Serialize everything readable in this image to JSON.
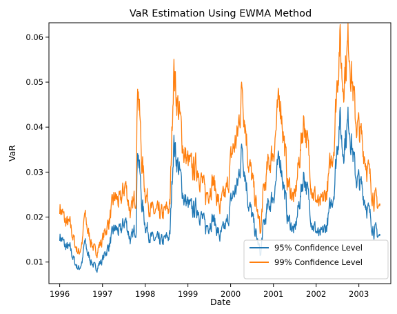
{
  "chart_data": {
    "type": "line",
    "title": "VaR Estimation Using EWMA Method",
    "xlabel": "Date",
    "ylabel": "VaR",
    "x_range": [
      "1995-10-01",
      "2003-10-01"
    ],
    "ylim": [
      0.0052,
      0.0632
    ],
    "x_ticks": [
      "1996",
      "1997",
      "1998",
      "1999",
      "2000",
      "2001",
      "2002",
      "2003"
    ],
    "y_ticks": [
      "0.01",
      "0.02",
      "0.03",
      "0.04",
      "0.05",
      "0.06"
    ],
    "grid": false,
    "legend_position": "lower-right",
    "series": [
      {
        "name": "95% Confidence Level",
        "color": "#1f77b4",
        "points": [
          [
            "1996-01-01",
            0.016
          ],
          [
            "1996-02-15",
            0.0135
          ],
          [
            "1996-04-01",
            0.0128
          ],
          [
            "1996-05-15",
            0.0095
          ],
          [
            "1996-06-15",
            0.0085
          ],
          [
            "1996-07-15",
            0.0105
          ],
          [
            "1996-08-01",
            0.0145
          ],
          [
            "1996-09-01",
            0.0115
          ],
          [
            "1996-11-01",
            0.0085
          ],
          [
            "1997-01-01",
            0.0105
          ],
          [
            "1997-03-01",
            0.014
          ],
          [
            "1997-04-15",
            0.0175
          ],
          [
            "1997-06-01",
            0.0165
          ],
          [
            "1997-07-15",
            0.0195
          ],
          [
            "1997-09-01",
            0.0145
          ],
          [
            "1997-10-15",
            0.018
          ],
          [
            "1997-10-28",
            0.037
          ],
          [
            "1997-12-01",
            0.0235
          ],
          [
            "1998-01-01",
            0.0185
          ],
          [
            "1998-03-01",
            0.015
          ],
          [
            "1998-06-01",
            0.0145
          ],
          [
            "1998-08-01",
            0.016
          ],
          [
            "1998-08-31",
            0.037
          ],
          [
            "1998-10-01",
            0.0325
          ],
          [
            "1998-12-01",
            0.024
          ],
          [
            "1999-02-01",
            0.0215
          ],
          [
            "1999-04-01",
            0.022
          ],
          [
            "1999-06-01",
            0.0175
          ],
          [
            "1999-08-01",
            0.02
          ],
          [
            "1999-10-01",
            0.0155
          ],
          [
            "1999-12-01",
            0.0185
          ],
          [
            "2000-01-15",
            0.0245
          ],
          [
            "2000-03-01",
            0.027
          ],
          [
            "2000-04-10",
            0.036
          ],
          [
            "2000-06-01",
            0.0235
          ],
          [
            "2000-08-01",
            0.0165
          ],
          [
            "2000-09-15",
            0.0115
          ],
          [
            "2000-10-01",
            0.017
          ],
          [
            "2000-11-15",
            0.022
          ],
          [
            "2001-01-01",
            0.025
          ],
          [
            "2001-03-01",
            0.0335
          ],
          [
            "2001-05-01",
            0.02
          ],
          [
            "2001-07-01",
            0.0165
          ],
          [
            "2001-09-20",
            0.03
          ],
          [
            "2001-12-01",
            0.0185
          ],
          [
            "2002-02-01",
            0.0155
          ],
          [
            "2002-04-01",
            0.018
          ],
          [
            "2002-06-01",
            0.026
          ],
          [
            "2002-07-20",
            0.0425
          ],
          [
            "2002-08-15",
            0.035
          ],
          [
            "2002-10-10",
            0.042
          ],
          [
            "2002-12-01",
            0.0295
          ],
          [
            "2003-02-01",
            0.026
          ],
          [
            "2003-04-01",
            0.0205
          ],
          [
            "2003-05-15",
            0.017
          ],
          [
            "2003-07-01",
            0.0155
          ]
        ]
      },
      {
        "name": "99% Confidence Level",
        "color": "#ff7f0e",
        "points": [
          [
            "1996-01-01",
            0.0225
          ],
          [
            "1996-02-15",
            0.019
          ],
          [
            "1996-04-01",
            0.018
          ],
          [
            "1996-05-15",
            0.0135
          ],
          [
            "1996-06-15",
            0.012
          ],
          [
            "1996-07-15",
            0.015
          ],
          [
            "1996-08-01",
            0.0205
          ],
          [
            "1996-09-01",
            0.0165
          ],
          [
            "1996-11-01",
            0.012
          ],
          [
            "1997-01-01",
            0.015
          ],
          [
            "1997-03-01",
            0.0195
          ],
          [
            "1997-04-15",
            0.0245
          ],
          [
            "1997-06-01",
            0.023
          ],
          [
            "1997-07-15",
            0.0275
          ],
          [
            "1997-09-01",
            0.0205
          ],
          [
            "1997-10-15",
            0.0255
          ],
          [
            "1997-10-28",
            0.0525
          ],
          [
            "1997-12-01",
            0.033
          ],
          [
            "1998-01-01",
            0.026
          ],
          [
            "1998-03-01",
            0.021
          ],
          [
            "1998-06-01",
            0.0205
          ],
          [
            "1998-08-01",
            0.0225
          ],
          [
            "1998-08-31",
            0.0535
          ],
          [
            "1998-10-01",
            0.046
          ],
          [
            "1998-12-01",
            0.034
          ],
          [
            "1999-02-01",
            0.0305
          ],
          [
            "1999-04-01",
            0.031
          ],
          [
            "1999-06-01",
            0.0245
          ],
          [
            "1999-08-01",
            0.0285
          ],
          [
            "1999-10-01",
            0.022
          ],
          [
            "1999-12-01",
            0.026
          ],
          [
            "2000-01-15",
            0.0345
          ],
          [
            "2000-03-01",
            0.038
          ],
          [
            "2000-04-10",
            0.0495
          ],
          [
            "2000-06-01",
            0.033
          ],
          [
            "2000-08-01",
            0.0235
          ],
          [
            "2000-09-15",
            0.0165
          ],
          [
            "2000-10-01",
            0.024
          ],
          [
            "2000-11-15",
            0.031
          ],
          [
            "2001-01-01",
            0.035
          ],
          [
            "2001-03-01",
            0.047
          ],
          [
            "2001-05-01",
            0.028
          ],
          [
            "2001-07-01",
            0.0235
          ],
          [
            "2001-09-20",
            0.0425
          ],
          [
            "2001-12-01",
            0.026
          ],
          [
            "2002-02-01",
            0.022
          ],
          [
            "2002-04-01",
            0.0255
          ],
          [
            "2002-06-01",
            0.0365
          ],
          [
            "2002-07-20",
            0.06
          ],
          [
            "2002-08-15",
            0.05
          ],
          [
            "2002-10-10",
            0.0595
          ],
          [
            "2002-12-01",
            0.042
          ],
          [
            "2003-02-01",
            0.0365
          ],
          [
            "2003-04-01",
            0.029
          ],
          [
            "2003-05-15",
            0.024
          ],
          [
            "2003-07-01",
            0.022
          ]
        ]
      }
    ]
  }
}
